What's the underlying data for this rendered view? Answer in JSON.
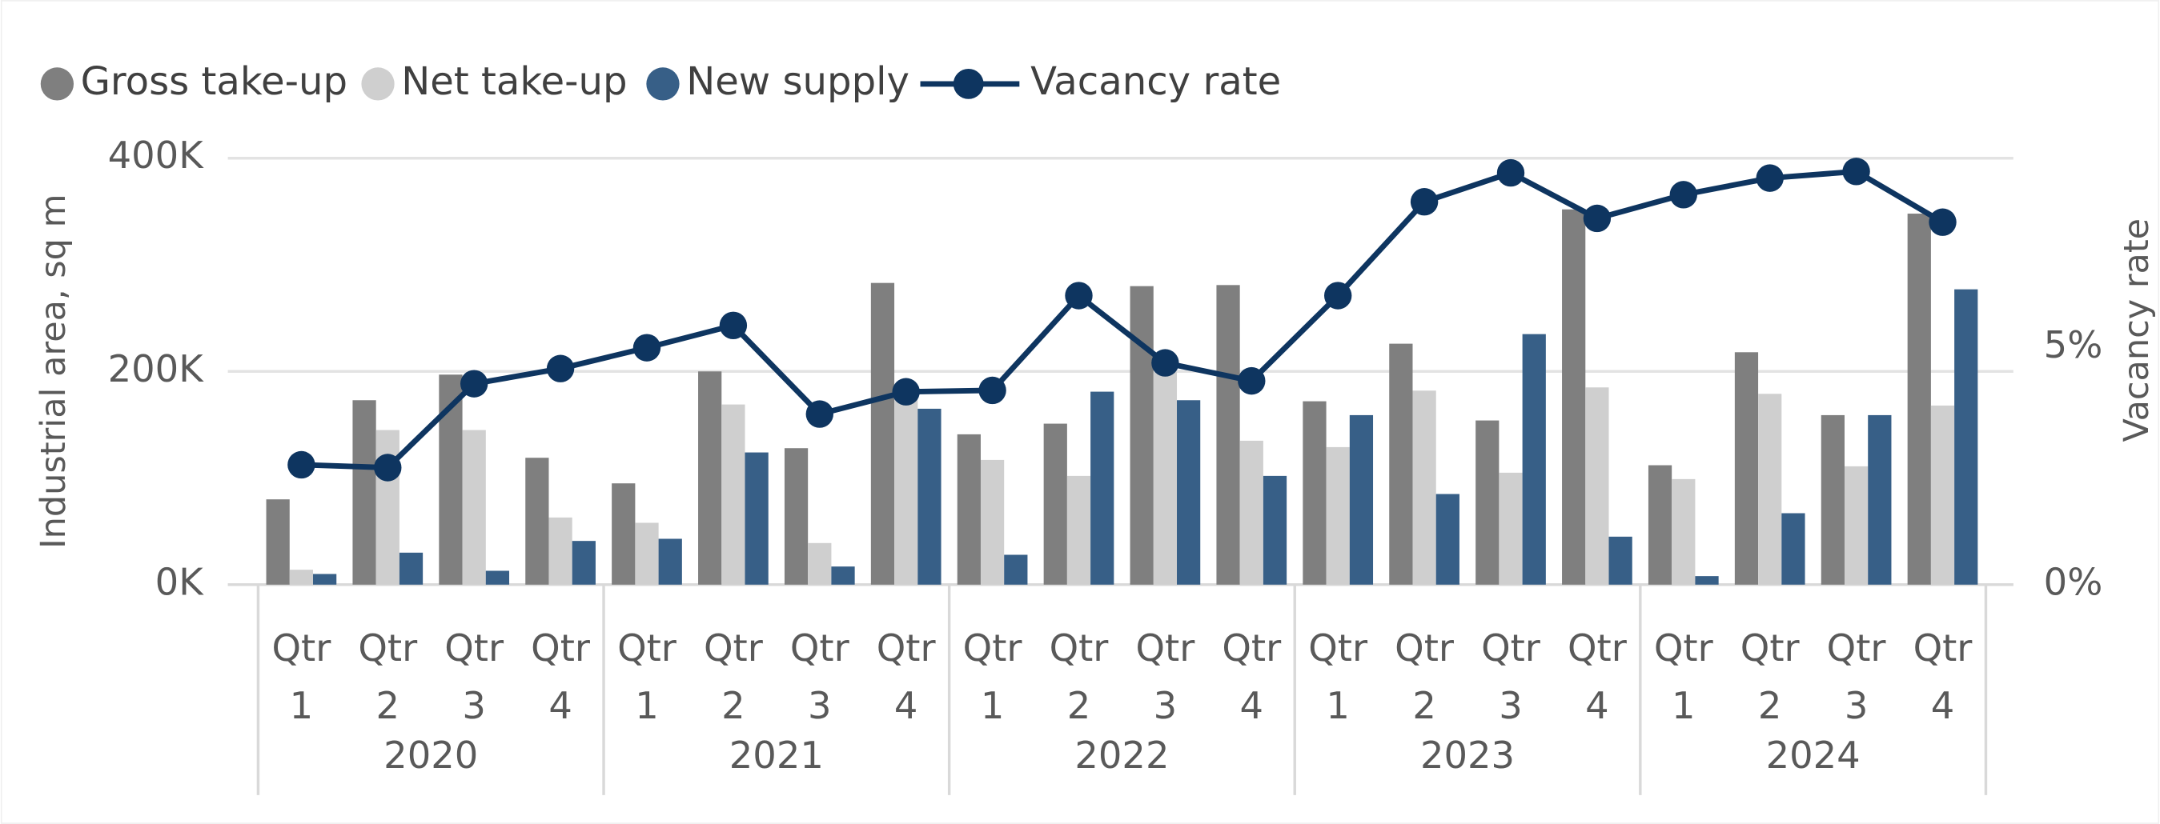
{
  "chart_data": {
    "type": "bar-line",
    "x_label_groups": [
      "2020",
      "2021",
      "2022",
      "2023",
      "2024"
    ],
    "categories": [
      [
        "Qtr",
        "1"
      ],
      [
        "Qtr",
        "2"
      ],
      [
        "Qtr",
        "3"
      ],
      [
        "Qtr",
        "4"
      ],
      [
        "Qtr",
        "1"
      ],
      [
        "Qtr",
        "2"
      ],
      [
        "Qtr",
        "3"
      ],
      [
        "Qtr",
        "4"
      ],
      [
        "Qtr",
        "1"
      ],
      [
        "Qtr",
        "2"
      ],
      [
        "Qtr",
        "3"
      ],
      [
        "Qtr",
        "4"
      ],
      [
        "Qtr",
        "1"
      ],
      [
        "Qtr",
        "2"
      ],
      [
        "Qtr",
        "3"
      ],
      [
        "Qtr",
        "4"
      ],
      [
        "Qtr",
        "1"
      ],
      [
        "Qtr",
        "2"
      ],
      [
        "Qtr",
        "3"
      ],
      [
        "Qtr",
        "4"
      ]
    ],
    "ylabel": "Industrial area, sq m",
    "y2label": "Vacancy rate",
    "ylim": [
      0,
      400000
    ],
    "yticks": [
      {
        "value": 0,
        "label": "0K"
      },
      {
        "value": 200000,
        "label": "200K"
      },
      {
        "value": 400000,
        "label": "400K"
      }
    ],
    "y2lim": [
      0,
      9
    ],
    "y2ticks": [
      {
        "value": 0,
        "label": "0%"
      },
      {
        "value": 5,
        "label": "5%"
      }
    ],
    "grid": true,
    "legend": "top-left",
    "series": [
      {
        "name": "Gross take-up",
        "type": "bar",
        "color": "#7f7f7f",
        "values": [
          80000,
          173000,
          197000,
          119000,
          95000,
          200000,
          128000,
          283000,
          141000,
          151000,
          280000,
          281000,
          172000,
          226000,
          154000,
          352000,
          112000,
          218000,
          159000,
          348000
        ]
      },
      {
        "name": "Net take-up",
        "type": "bar",
        "color": "#cfcfcf",
        "values": [
          14000,
          145000,
          145000,
          63000,
          58000,
          169000,
          39000,
          175000,
          117000,
          102000,
          200000,
          135000,
          129000,
          182000,
          105000,
          185000,
          99000,
          179000,
          111000,
          168000
        ]
      },
      {
        "name": "New supply",
        "type": "bar",
        "color": "#375f87",
        "values": [
          10000,
          30000,
          13000,
          41000,
          43000,
          124000,
          17000,
          165000,
          28000,
          181000,
          173000,
          102000,
          159000,
          85000,
          235000,
          45000,
          8000,
          67000,
          159000,
          277000
        ]
      },
      {
        "name": "Vacancy rate",
        "type": "line",
        "axis": "y2",
        "color": "#0e3560",
        "values": [
          2.53,
          2.47,
          4.24,
          4.56,
          5.0,
          5.47,
          3.6,
          4.07,
          4.1,
          6.1,
          4.68,
          4.3,
          6.1,
          8.08,
          8.69,
          7.73,
          8.23,
          8.58,
          8.72,
          7.65
        ]
      }
    ]
  }
}
